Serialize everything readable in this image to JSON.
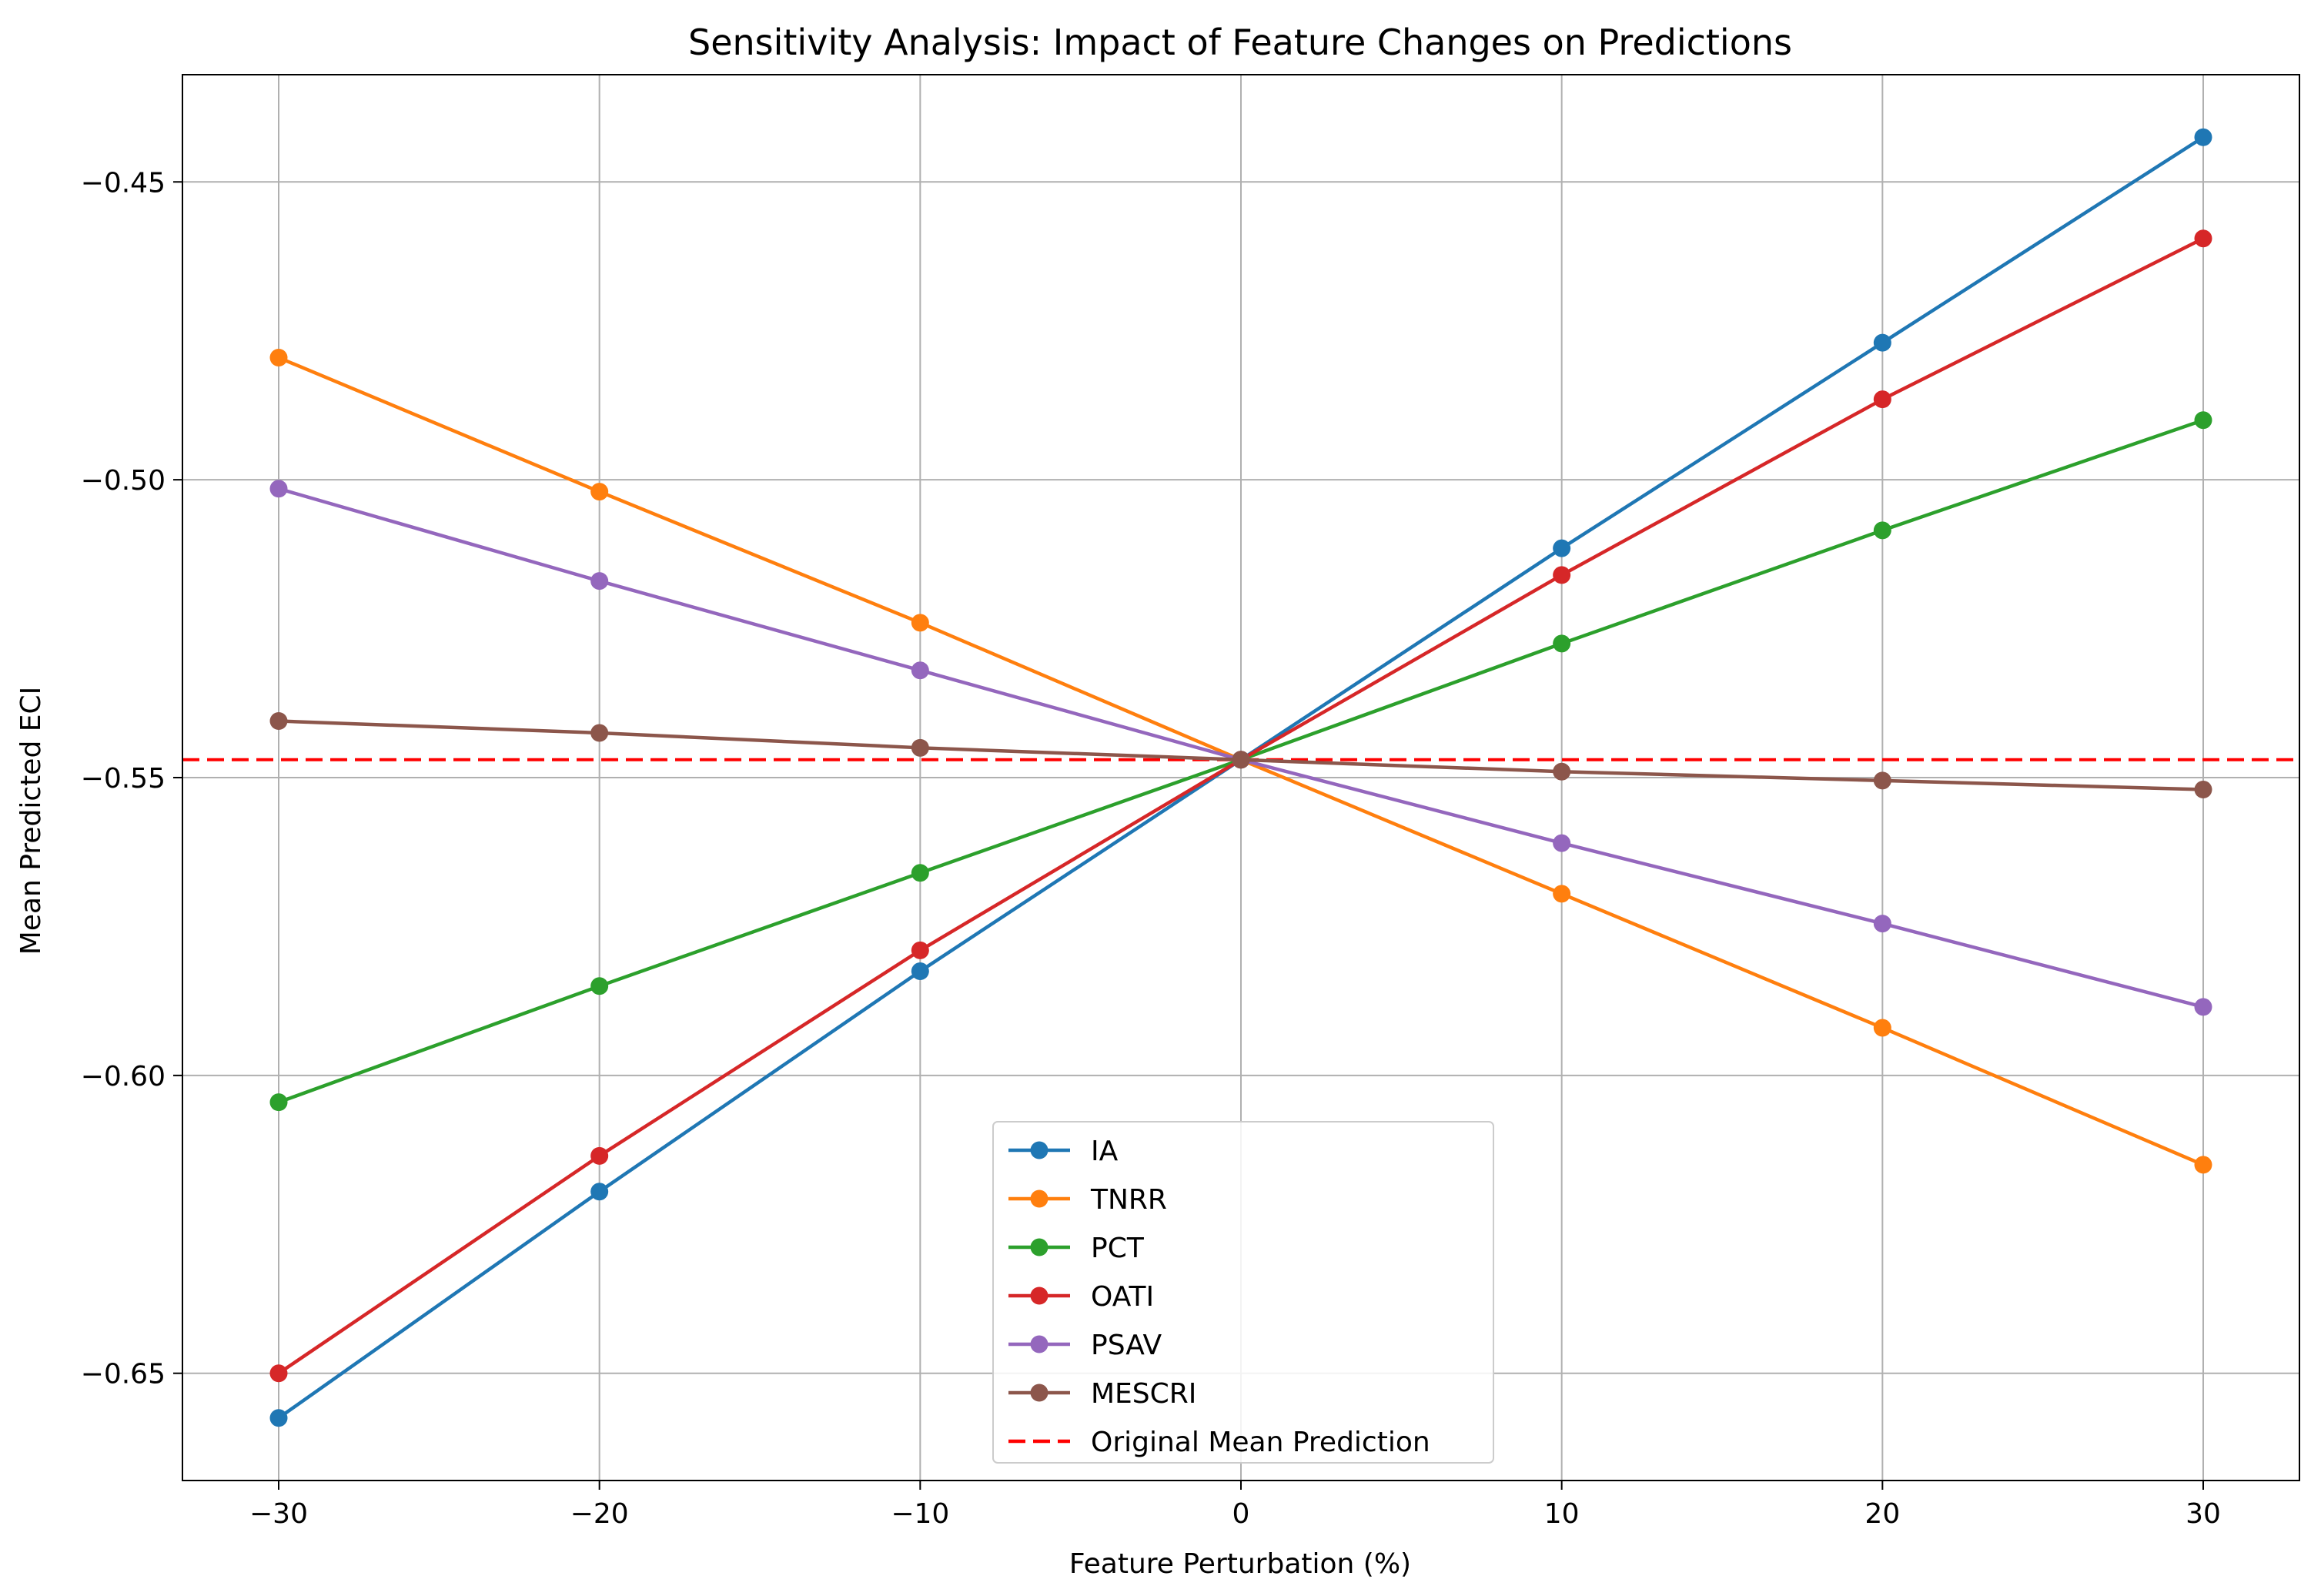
{
  "chart_data": {
    "type": "line",
    "title": "Sensitivity Analysis: Impact of Feature Changes on Predictions",
    "xlabel": "Feature Perturbation (%)",
    "ylabel": "Mean Predicted ECI",
    "x": [
      -30,
      -20,
      -10,
      0,
      10,
      20,
      30
    ],
    "x_tick_labels": [
      "−30",
      "−20",
      "−10",
      "0",
      "10",
      "20",
      "30"
    ],
    "xlim": [
      -33,
      33
    ],
    "y_ticks": [
      -0.65,
      -0.6,
      -0.55,
      -0.5,
      -0.45
    ],
    "y_tick_labels": [
      "−0.65",
      "−0.60",
      "−0.55",
      "−0.50",
      "−0.45"
    ],
    "ylim": [
      -0.668,
      -0.432
    ],
    "grid": true,
    "legend_position": "lower-center",
    "series": [
      {
        "name": "IA",
        "color": "#1f77b4",
        "values": [
          -0.6575,
          -0.6195,
          -0.5825,
          -0.547,
          -0.5115,
          -0.477,
          -0.4425
        ]
      },
      {
        "name": "TNRR",
        "color": "#ff7f0e",
        "values": [
          -0.4795,
          -0.502,
          -0.524,
          -0.547,
          -0.5695,
          -0.592,
          -0.615
        ]
      },
      {
        "name": "PCT",
        "color": "#2ca02c",
        "values": [
          -0.6045,
          -0.585,
          -0.566,
          -0.547,
          -0.5275,
          -0.5085,
          -0.49
        ]
      },
      {
        "name": "OATI",
        "color": "#d62728",
        "values": [
          -0.65,
          -0.6135,
          -0.579,
          -0.547,
          -0.516,
          -0.4865,
          -0.4595
        ]
      },
      {
        "name": "PSAV",
        "color": "#9467bd",
        "values": [
          -0.5015,
          -0.517,
          -0.532,
          -0.547,
          -0.561,
          -0.5745,
          -0.5885
        ]
      },
      {
        "name": "MESCRI",
        "color": "#8c564b",
        "values": [
          -0.5405,
          -0.5425,
          -0.545,
          -0.547,
          -0.549,
          -0.5505,
          -0.552
        ]
      }
    ],
    "reference_line": {
      "name": "Original Mean Prediction",
      "color": "#ff0000",
      "style": "dashed",
      "value": -0.547
    }
  }
}
